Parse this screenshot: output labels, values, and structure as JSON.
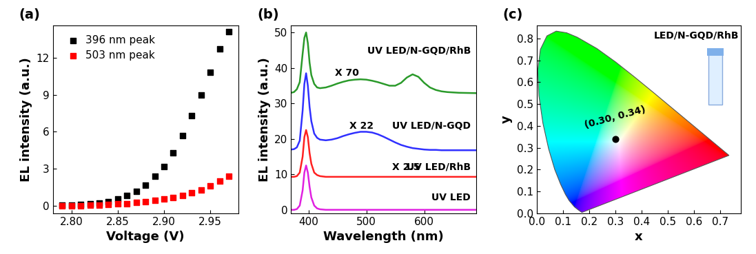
{
  "chart_data": [
    {
      "type": "scatter",
      "panel_label": "(a)",
      "x_label": "Voltage (V)",
      "y_label": "EL intensity (a.u.)",
      "x": [
        2.79,
        2.8,
        2.81,
        2.82,
        2.83,
        2.84,
        2.85,
        2.86,
        2.87,
        2.88,
        2.89,
        2.9,
        2.91,
        2.92,
        2.93,
        2.94,
        2.95,
        2.96,
        2.97
      ],
      "series": [
        {
          "name": "396 nm peak",
          "color": "#000000",
          "marker": "s",
          "values": [
            0.05,
            0.08,
            0.12,
            0.17,
            0.25,
            0.35,
            0.55,
            0.85,
            1.2,
            1.7,
            2.4,
            3.2,
            4.3,
            5.7,
            7.3,
            9.0,
            10.8,
            12.7,
            14.1
          ]
        },
        {
          "name": "503 nm peak",
          "color": "#ff0000",
          "marker": "s",
          "values": [
            0.01,
            0.02,
            0.03,
            0.05,
            0.07,
            0.1,
            0.15,
            0.2,
            0.28,
            0.35,
            0.45,
            0.55,
            0.7,
            0.85,
            1.05,
            1.3,
            1.65,
            2.0,
            2.4
          ]
        }
      ],
      "xlim": [
        2.78,
        2.98
      ],
      "xticks": [
        {
          "value": 2.8,
          "label": "2.80"
        },
        {
          "value": 2.85,
          "label": "2.85"
        },
        {
          "value": 2.9,
          "label": "2.90"
        },
        {
          "value": 2.95,
          "label": "2.95"
        }
      ],
      "ylim": [
        -0.6,
        14.6
      ],
      "yticks": [
        0,
        3,
        6,
        9,
        12
      ],
      "legend": "upper left"
    },
    {
      "type": "line",
      "panel_label": "(b)",
      "x_label": "Wavelength (nm)",
      "y_label": "EL intensity (a.u.)",
      "x": [
        370,
        375,
        380,
        385,
        390,
        393,
        396,
        399,
        402,
        405,
        410,
        415,
        420,
        430,
        440,
        450,
        460,
        470,
        480,
        490,
        500,
        510,
        520,
        530,
        540,
        550,
        560,
        570,
        580,
        590,
        600,
        610,
        620,
        630,
        640,
        660,
        690
      ],
      "series": [
        {
          "name": "UV LED",
          "color": "#e020e0",
          "values": [
            0,
            0,
            0.2,
            1.2,
            5.5,
            10.5,
            12.5,
            10.5,
            6.5,
            3.5,
            1.2,
            0.4,
            0.15,
            0,
            0,
            0,
            0,
            0,
            0,
            0,
            0,
            0,
            0,
            0,
            0,
            0,
            0,
            0,
            0,
            0,
            0,
            0,
            0,
            0,
            0,
            0,
            0
          ]
        },
        {
          "name": "UV LED/RhB",
          "color": "#ff2020",
          "values": [
            9.3,
            9.3,
            9.5,
            10.5,
            15,
            20.5,
            22.5,
            20.5,
            16,
            13,
            10.5,
            9.8,
            9.5,
            9.3,
            9.3,
            9.3,
            9.3,
            9.3,
            9.3,
            9.3,
            9.3,
            9.3,
            9.3,
            9.3,
            9.3,
            9.3,
            9.3,
            9.3,
            9.3,
            9.3,
            9.3,
            9.3,
            9.3,
            9.3,
            9.3,
            9.3,
            9.3
          ]
        },
        {
          "name": "UV LED/N-GQD",
          "color": "#3030ff",
          "values": [
            17,
            17.1,
            17.6,
            19.5,
            28,
            35.5,
            38.5,
            35,
            29,
            25,
            21.5,
            20.3,
            19.8,
            19.6,
            19.8,
            20.2,
            20.8,
            21.3,
            21.7,
            22,
            22,
            21.8,
            21.3,
            20.6,
            19.8,
            19,
            18.3,
            17.8,
            17.4,
            17.2,
            17.0,
            16.9,
            16.9,
            16.8,
            16.8,
            16.8,
            16.8
          ]
        },
        {
          "name": "UV LED/N-GQD/RhB",
          "color": "#2a9a2a",
          "values": [
            33,
            33.2,
            34,
            36,
            44,
            48.5,
            50,
            47,
            41.5,
            38,
            35.5,
            34.5,
            34.3,
            34.5,
            35,
            35.6,
            36.1,
            36.5,
            36.7,
            36.8,
            36.7,
            36.4,
            36,
            35.5,
            35,
            35,
            35.8,
            37.3,
            38.2,
            37.5,
            35.8,
            34.5,
            33.8,
            33.4,
            33.2,
            33,
            32.9
          ]
        }
      ],
      "annotations": [
        "UV LED/N-GQD/RhB",
        "X 70",
        "UV LED/N-GQD",
        "X 22",
        "UV LED/RhB",
        "X 2.5",
        "UV LED"
      ],
      "xlim": [
        370,
        690
      ],
      "xticks": [
        400,
        500,
        600
      ],
      "ylim": [
        -1,
        52
      ],
      "yticks": [
        0,
        10,
        20,
        30,
        40,
        50
      ]
    },
    {
      "type": "scatter",
      "panel_label": "(c)",
      "x_label": "x",
      "y_label": "y",
      "annotations": [
        "LED/N-GQD/RhB"
      ],
      "x": [
        0.3
      ],
      "values": [
        0.34
      ],
      "value_labels": [
        "(0.30, 0.34)"
      ],
      "data_labels": true,
      "color": "#000000",
      "locus": {
        "x": [
          0.1741,
          0.1733,
          0.1714,
          0.1644,
          0.1566,
          0.144,
          0.1241,
          0.1096,
          0.0913,
          0.0687,
          0.0454,
          0.0235,
          0.0082,
          0.0039,
          0.0139,
          0.0389,
          0.0743,
          0.1142,
          0.1547,
          0.2296,
          0.3016,
          0.3731,
          0.4441,
          0.5125,
          0.5752,
          0.627,
          0.6915,
          0.719,
          0.7347
        ],
        "y": [
          0.005,
          0.0048,
          0.0051,
          0.0109,
          0.0177,
          0.0297,
          0.0578,
          0.0868,
          0.1327,
          0.2007,
          0.295,
          0.4127,
          0.5384,
          0.6548,
          0.7502,
          0.812,
          0.8338,
          0.8262,
          0.8059,
          0.7543,
          0.6923,
          0.6245,
          0.5547,
          0.4866,
          0.4242,
          0.3725,
          0.3083,
          0.2809,
          0.2653
        ]
      },
      "xlim": [
        0,
        0.78
      ],
      "xticks": [
        {
          "value": 0.0,
          "label": "0.0"
        },
        {
          "value": 0.1,
          "label": "0.1"
        },
        {
          "value": 0.2,
          "label": "0.2"
        },
        {
          "value": 0.3,
          "label": "0.3"
        },
        {
          "value": 0.4,
          "label": "0.4"
        },
        {
          "value": 0.5,
          "label": "0.5"
        },
        {
          "value": 0.6,
          "label": "0.6"
        },
        {
          "value": 0.7,
          "label": "0.7"
        }
      ],
      "ylim": [
        0,
        0.86
      ],
      "yticks": [
        {
          "value": 0.0,
          "label": "0.0"
        },
        {
          "value": 0.1,
          "label": "0.1"
        },
        {
          "value": 0.2,
          "label": "0.2"
        },
        {
          "value": 0.3,
          "label": "0.3"
        },
        {
          "value": 0.4,
          "label": "0.4"
        },
        {
          "value": 0.5,
          "label": "0.5"
        },
        {
          "value": 0.6,
          "label": "0.6"
        },
        {
          "value": 0.7,
          "label": "0.7"
        },
        {
          "value": 0.8,
          "label": "0.8"
        }
      ]
    }
  ]
}
